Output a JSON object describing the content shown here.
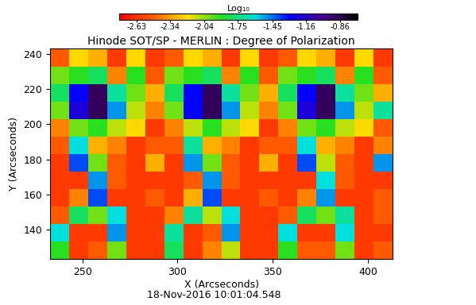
{
  "chart_data": {
    "type": "heatmap",
    "title": "Hinode SOT/SP - MERLIN : Degree of Polarization",
    "x_label": "X (Arcseconds)",
    "y_label": "Y (Arcseconds)",
    "annotation": "18-Nov-2016 10:01:04.548",
    "x": [
      238,
      248,
      258,
      268,
      278,
      288,
      298,
      308,
      318,
      328,
      338,
      348,
      358,
      368,
      378,
      388,
      398,
      408
    ],
    "y": [
      128,
      138,
      148,
      158,
      168,
      178,
      188,
      198,
      208,
      218,
      228,
      238
    ],
    "cells": [
      [
        -1.9,
        -2.6,
        -2.5,
        -2.0,
        -2.6,
        -2.6,
        -1.8,
        -2.6,
        -2.4,
        -2.1,
        -2.6,
        -2.6,
        -1.9,
        -2.5,
        -2.5,
        -2.0,
        -2.6,
        -2.5
      ],
      [
        -1.6,
        -2.6,
        -2.6,
        -1.5,
        -2.6,
        -2.6,
        -1.7,
        -2.6,
        -2.5,
        -1.5,
        -2.6,
        -2.6,
        -1.6,
        -2.6,
        -2.6,
        -1.6,
        -2.6,
        -2.6
      ],
      [
        -2.5,
        -1.8,
        -2.0,
        -1.6,
        -2.6,
        -2.6,
        -2.4,
        -1.7,
        -2.1,
        -1.6,
        -2.6,
        -2.6,
        -2.5,
        -1.8,
        -2.0,
        -1.7,
        -2.6,
        -2.5
      ],
      [
        -2.6,
        -2.4,
        -1.4,
        -2.6,
        -2.6,
        -2.5,
        -2.6,
        -2.3,
        -1.4,
        -2.6,
        -2.6,
        -2.5,
        -2.6,
        -2.4,
        -1.5,
        -2.6,
        -2.6,
        -2.5
      ],
      [
        -2.6,
        -2.6,
        -1.5,
        -2.5,
        -2.6,
        -2.6,
        -2.6,
        -2.5,
        -1.5,
        -2.5,
        -2.6,
        -2.6,
        -2.6,
        -2.6,
        -1.6,
        -2.5,
        -2.6,
        -2.6
      ],
      [
        -2.6,
        -1.4,
        -2.0,
        -2.5,
        -2.6,
        -2.3,
        -2.6,
        -1.5,
        -2.0,
        -2.5,
        -2.6,
        -2.3,
        -2.6,
        -1.4,
        -2.1,
        -2.5,
        -2.6,
        -1.5
      ],
      [
        -2.5,
        -1.6,
        -2.3,
        -2.4,
        -2.6,
        -2.5,
        -2.5,
        -1.7,
        -2.3,
        -2.4,
        -2.6,
        -2.5,
        -2.5,
        -1.6,
        -2.3,
        -2.4,
        -2.6,
        -2.4
      ],
      [
        -2.4,
        -2.0,
        -1.9,
        -2.1,
        -2.2,
        -2.6,
        -2.4,
        -2.1,
        -1.9,
        -2.1,
        -2.2,
        -2.6,
        -2.4,
        -2.0,
        -1.9,
        -2.1,
        -2.2,
        -2.5
      ],
      [
        -2.0,
        -1.2,
        -0.9,
        -1.5,
        -2.1,
        -2.4,
        -2.0,
        -1.3,
        -0.9,
        -1.5,
        -2.1,
        -2.4,
        -2.0,
        -1.2,
        -0.9,
        -1.5,
        -2.1,
        -1.7
      ],
      [
        -1.8,
        -1.3,
        -0.9,
        -1.7,
        -2.0,
        -2.3,
        -1.8,
        -1.3,
        -0.9,
        -1.7,
        -2.0,
        -2.3,
        -1.8,
        -1.3,
        -0.9,
        -1.7,
        -2.0,
        -2.3
      ],
      [
        -2.0,
        -1.9,
        -1.8,
        -2.4,
        -1.9,
        -2.5,
        -2.0,
        -1.9,
        -1.8,
        -2.4,
        -1.9,
        -2.5,
        -2.0,
        -1.9,
        -1.8,
        -2.4,
        -1.9,
        -2.5
      ],
      [
        -2.5,
        -2.2,
        -2.3,
        -2.6,
        -2.2,
        -2.6,
        -2.5,
        -2.2,
        -2.3,
        -2.6,
        -2.2,
        -2.6,
        -2.5,
        -2.2,
        -2.3,
        -2.6,
        -2.2,
        -2.6
      ]
    ],
    "xlim": [
      233,
      413
    ],
    "ylim": [
      123,
      243
    ],
    "xticks": [
      250,
      300,
      350,
      400
    ],
    "yticks": [
      140,
      160,
      180,
      200,
      220,
      240
    ],
    "colorbar": {
      "label": "Log₁₀",
      "range": [
        -2.78,
        -0.71
      ],
      "ticks": [
        -2.63,
        -2.34,
        -2.04,
        -1.75,
        -1.45,
        -1.16,
        -0.86
      ]
    }
  }
}
